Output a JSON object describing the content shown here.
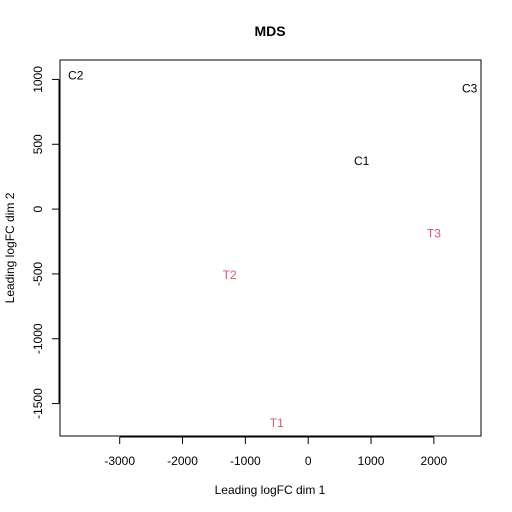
{
  "chart_data": {
    "type": "scatter",
    "title": "MDS",
    "xlabel": "Leading logFC dim 1",
    "ylabel": "Leading logFC dim 2",
    "xlim": [
      -3950,
      2750
    ],
    "ylim": [
      -1750,
      1150
    ],
    "xticks": [
      -3000,
      -2000,
      -1000,
      0,
      1000,
      2000
    ],
    "yticks": [
      -1500,
      -1000,
      -500,
      0,
      500,
      1000
    ],
    "grid": false,
    "points": [
      {
        "label": "C2",
        "x": -3700,
        "y": 1030,
        "color": "#000000"
      },
      {
        "label": "C3",
        "x": 2570,
        "y": 930,
        "color": "#000000"
      },
      {
        "label": "C1",
        "x": 850,
        "y": 370,
        "color": "#000000"
      },
      {
        "label": "T3",
        "x": 2000,
        "y": -190,
        "color": "#DF536B"
      },
      {
        "label": "T2",
        "x": -1250,
        "y": -510,
        "color": "#DF536B"
      },
      {
        "label": "T1",
        "x": -500,
        "y": -1650,
        "color": "#DF536B"
      }
    ]
  }
}
